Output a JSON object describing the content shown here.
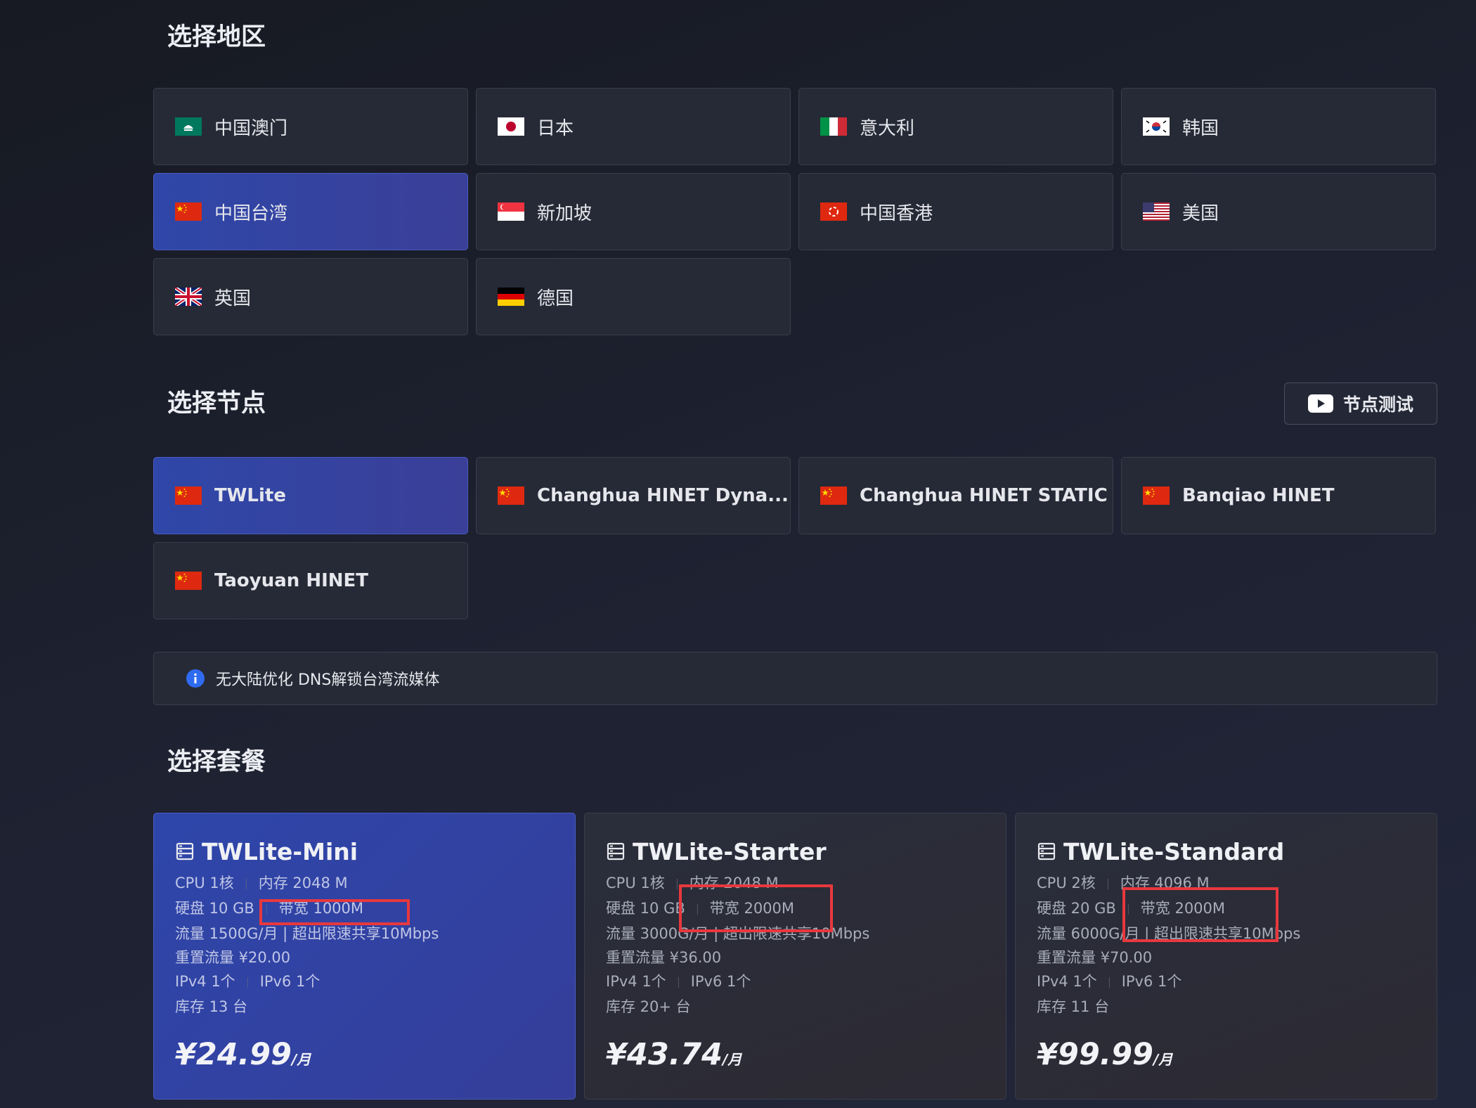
{
  "regions": {
    "title": "选择地区",
    "selected": 4,
    "items": [
      "中国澳门",
      "日本",
      "意大利",
      "韩国",
      "中国台湾",
      "新加坡",
      "中国香港",
      "美国",
      "英国",
      "德国"
    ]
  },
  "nodes": {
    "title": "选择节点",
    "test_button": "节点测试",
    "selected": 0,
    "items": [
      "TWLite",
      "Changhua HINET Dyna...",
      "Changhua HINET STATIC",
      "Banqiao HINET",
      "Taoyuan HINET"
    ]
  },
  "notice": "无大陆优化 DNS解锁台湾流媒体",
  "plans": {
    "title": "选择套餐",
    "selected": 0,
    "items": [
      {
        "name": "TWLite-Mini",
        "specs": [
          [
            "CPU 1核",
            "内存 2048 M"
          ],
          [
            "硬盘 10 GB",
            "带宽 1000M"
          ],
          [
            "流量 1500G/月 | 超出限速共享10Mbps"
          ],
          [
            "重置流量 ¥20.00"
          ],
          [
            "IPv4 1个",
            "IPv6 1个"
          ],
          [
            "库存 13 台"
          ]
        ],
        "price": "¥24.99",
        "unit": "/月"
      },
      {
        "name": "TWLite-Starter",
        "specs": [
          [
            "CPU 1核",
            "内存 2048 M"
          ],
          [
            "硬盘 10 GB",
            "带宽 2000M"
          ],
          [
            "流量 3000G/月 | 超出限速共享10Mbps"
          ],
          [
            "重置流量 ¥36.00"
          ],
          [
            "IPv4 1个",
            "IPv6 1个"
          ],
          [
            "库存 20+ 台"
          ]
        ],
        "price": "¥43.74",
        "unit": "/月"
      },
      {
        "name": "TWLite-Standard",
        "specs": [
          [
            "CPU 2核",
            "内存 4096 M"
          ],
          [
            "硬盘 20 GB",
            "带宽 2000M"
          ],
          [
            "流量 6000G/月 | 超出限速共享10Mbps"
          ],
          [
            "重置流量 ¥70.00"
          ],
          [
            "IPv4 1个",
            "IPv6 1个"
          ],
          [
            "库存 11 台"
          ]
        ],
        "price": "¥99.99",
        "unit": "/月"
      }
    ]
  }
}
